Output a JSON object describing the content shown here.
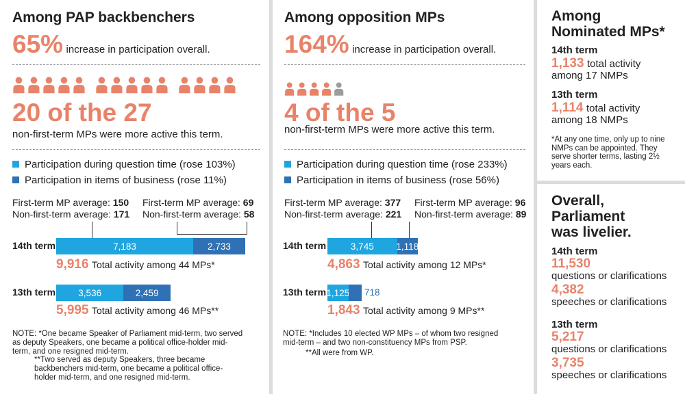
{
  "pap": {
    "title": "Among PAP backbenchers",
    "pct": "65%",
    "pct_text": "increase in participation overall.",
    "people_total": 27,
    "people_active": 20,
    "of_text": "20 of the 27",
    "of_sub": "non-first-term MPs were more active this term.",
    "legend_qt": "Participation during question time (rose 103%)",
    "legend_ib": "Participation in items of business (rose 11%)",
    "avg_left_label1": "First-term MP average:",
    "avg_left_val1": "150",
    "avg_left_label2": "Non-first-term average:",
    "avg_left_val2": "171",
    "avg_right_label1": "First-term MP average:",
    "avg_right_val1": "69",
    "avg_right_label2": "Non-first-term average:",
    "avg_right_val2": "58",
    "term14": "14th term",
    "term13": "13th term",
    "total14_num": "9,916",
    "total14_text": "Total activity among 44 MPs*",
    "total13_num": "5,995",
    "total13_text": "Total activity among 46 MPs**",
    "note1": "NOTE:  *One became Speaker of Parliament mid-term, two served as deputy Speakers, one became a political office-holder mid-term, and one resigned mid-term.",
    "note2": "**Two served as deputy Speakers, three became backbenchers mid-term, one became a political office-holder mid-term, and one resigned mid-term."
  },
  "opp": {
    "title": "Among opposition MPs",
    "pct": "164%",
    "pct_text": "increase in participation overall.",
    "people_total": 5,
    "people_active": 4,
    "of_text": "4 of the 5",
    "of_sub": "non-first-term MPs were more active this term.",
    "legend_qt": "Participation during question time (rose 233%)",
    "legend_ib": "Participation in items of business (rose 56%)",
    "avg_left_label1": "First-term MP average:",
    "avg_left_val1": "377",
    "avg_left_label2": "Non-first-term average:",
    "avg_left_val2": "221",
    "avg_right_label1": "First-term MP average:",
    "avg_right_val1": "96",
    "avg_right_label2": "Non-first-term average:",
    "avg_right_val2": "89",
    "term14": "14th term",
    "term13": "13th term",
    "total14_num": "4,863",
    "total14_text": "Total activity among 12 MPs*",
    "total13_num": "1,843",
    "total13_text": "Total activity among 9 MPs**",
    "note1": "NOTE: *Includes 10 elected WP MPs – of whom two resigned mid-term – and two non-constituency MPs from PSP.",
    "note2": "**All were from WP."
  },
  "nmp": {
    "title1": "Among",
    "title2": "Nominated MPs*",
    "t14_label": "14th term",
    "t14_num": "1,133",
    "t14_text1": "total activity",
    "t14_text2": "among 17 NMPs",
    "t13_label": "13th term",
    "t13_num": "1,114",
    "t13_text1": "total activity",
    "t13_text2": "among 18 NMPs",
    "note": "*At any one time, only up to nine NMPs can be appointed. They serve shorter terms, lasting 2½ years each."
  },
  "overall": {
    "title1": "Overall,",
    "title2": "Parliament",
    "title3": "was livelier.",
    "t14_label": "14th term",
    "t14_q_num": "11,530",
    "t14_q_text": "questions or clarifications",
    "t14_s_num": "4,382",
    "t14_s_text": "speeches or clarifications",
    "t13_label": "13th term",
    "t13_q_num": "5,217",
    "t13_q_text": "questions or clarifications",
    "t13_s_num": "3,735",
    "t13_s_text": "speeches or clarifications"
  },
  "colors": {
    "accent": "#e8836a",
    "question_time": "#1fa6e0",
    "items_business": "#2f71b4",
    "person_active": "#e8836a",
    "person_inactive": "#9c9c9c"
  },
  "chart_data": [
    {
      "type": "bar",
      "orientation": "horizontal",
      "stacked": true,
      "categories": [
        "14th term",
        "13th term"
      ],
      "series": [
        {
          "name": "Participation during question time (rose 103%)",
          "values": [
            7183,
            3536
          ]
        },
        {
          "name": "Participation in items of business (rose 11%)",
          "values": [
            2733,
            2459
          ]
        }
      ],
      "totals": [
        9916,
        5995
      ]
    },
    {
      "type": "bar",
      "orientation": "horizontal",
      "stacked": true,
      "categories": [
        "14th term",
        "13th term"
      ],
      "series": [
        {
          "name": "Participation during question time (rose 233%)",
          "values": [
            3745,
            1125
          ]
        },
        {
          "name": "Participation in items of business (rose 56%)",
          "values": [
            1118,
            718
          ]
        }
      ],
      "totals": [
        4863,
        1843
      ]
    }
  ]
}
